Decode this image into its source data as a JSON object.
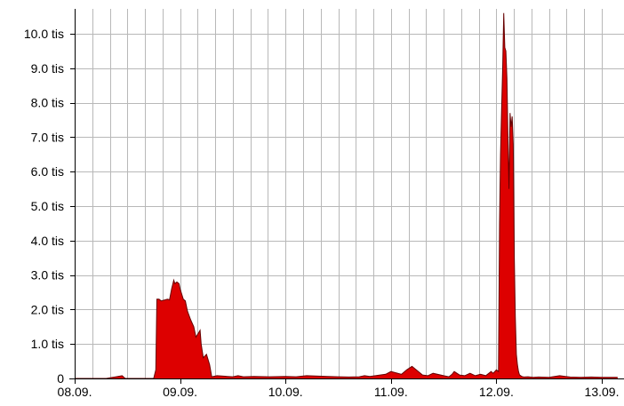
{
  "chart_data": {
    "type": "area",
    "title": "",
    "xlabel": "",
    "ylabel": "",
    "x_ticks": [
      "08.09.",
      "09.09.",
      "10.09.",
      "11.09.",
      "12.09.",
      "13.09."
    ],
    "y_ticks": [
      "0",
      "1.0 tis",
      "2.0 tis",
      "3.0 tis",
      "4.0 tis",
      "5.0 tis",
      "6.0 tis",
      "7.0 tis",
      "8.0 tis",
      "9.0 tis",
      "10.0 tis"
    ],
    "xlim": [
      0,
      5.15
    ],
    "ylim": [
      0,
      10500
    ],
    "grid": true,
    "color": "#dd0000",
    "edge_color": "#660000",
    "series": [
      {
        "x": [
          0,
          0.3,
          0.45,
          0.48,
          0.65,
          0.7,
          0.75,
          0.77,
          0.78,
          0.8,
          0.82,
          0.88,
          0.9,
          0.92,
          0.94,
          0.95,
          0.97,
          0.99,
          1.0,
          1.01,
          1.03,
          1.05,
          1.07,
          1.1,
          1.13,
          1.15,
          1.17,
          1.19,
          1.2,
          1.22,
          1.25,
          1.28,
          1.3,
          1.35,
          1.5,
          1.55,
          1.6,
          1.7,
          1.85,
          2.0,
          2.1,
          2.2,
          2.4,
          2.5,
          2.6,
          2.7,
          2.75,
          2.8,
          2.95,
          3.0,
          3.1,
          3.15,
          3.2,
          3.3,
          3.35,
          3.4,
          3.5,
          3.55,
          3.58,
          3.6,
          3.65,
          3.7,
          3.75,
          3.8,
          3.85,
          3.9,
          3.95,
          3.97,
          4.0,
          4.02,
          4.03,
          4.04,
          4.05,
          4.06,
          4.07,
          4.08,
          4.09,
          4.1,
          4.11,
          4.12,
          4.13,
          4.14,
          4.15,
          4.16,
          4.17,
          4.18,
          4.19,
          4.2,
          4.21,
          4.22,
          4.24,
          4.26,
          4.3,
          4.35,
          4.4,
          4.5,
          4.6,
          4.7,
          4.8,
          4.9,
          5.0,
          5.15
        ],
        "y": [
          0,
          0,
          80,
          0,
          0,
          0,
          0,
          250,
          2300,
          2300,
          2250,
          2300,
          2280,
          2600,
          2850,
          2750,
          2800,
          2750,
          2600,
          2500,
          2300,
          2250,
          1950,
          1700,
          1500,
          1200,
          1300,
          1400,
          1000,
          600,
          700,
          400,
          50,
          80,
          50,
          80,
          50,
          60,
          50,
          60,
          50,
          80,
          60,
          50,
          40,
          50,
          80,
          60,
          120,
          200,
          120,
          250,
          350,
          100,
          80,
          150,
          80,
          50,
          120,
          200,
          100,
          80,
          150,
          80,
          120,
          80,
          200,
          150,
          250,
          200,
          4500,
          6500,
          7800,
          9000,
          10600,
          9600,
          9500,
          8700,
          7000,
          5500,
          7700,
          7300,
          7600,
          6800,
          3500,
          1800,
          700,
          400,
          200,
          100,
          60,
          40,
          50,
          30,
          40,
          30,
          80,
          40,
          30,
          40,
          30,
          30
        ]
      }
    ]
  }
}
